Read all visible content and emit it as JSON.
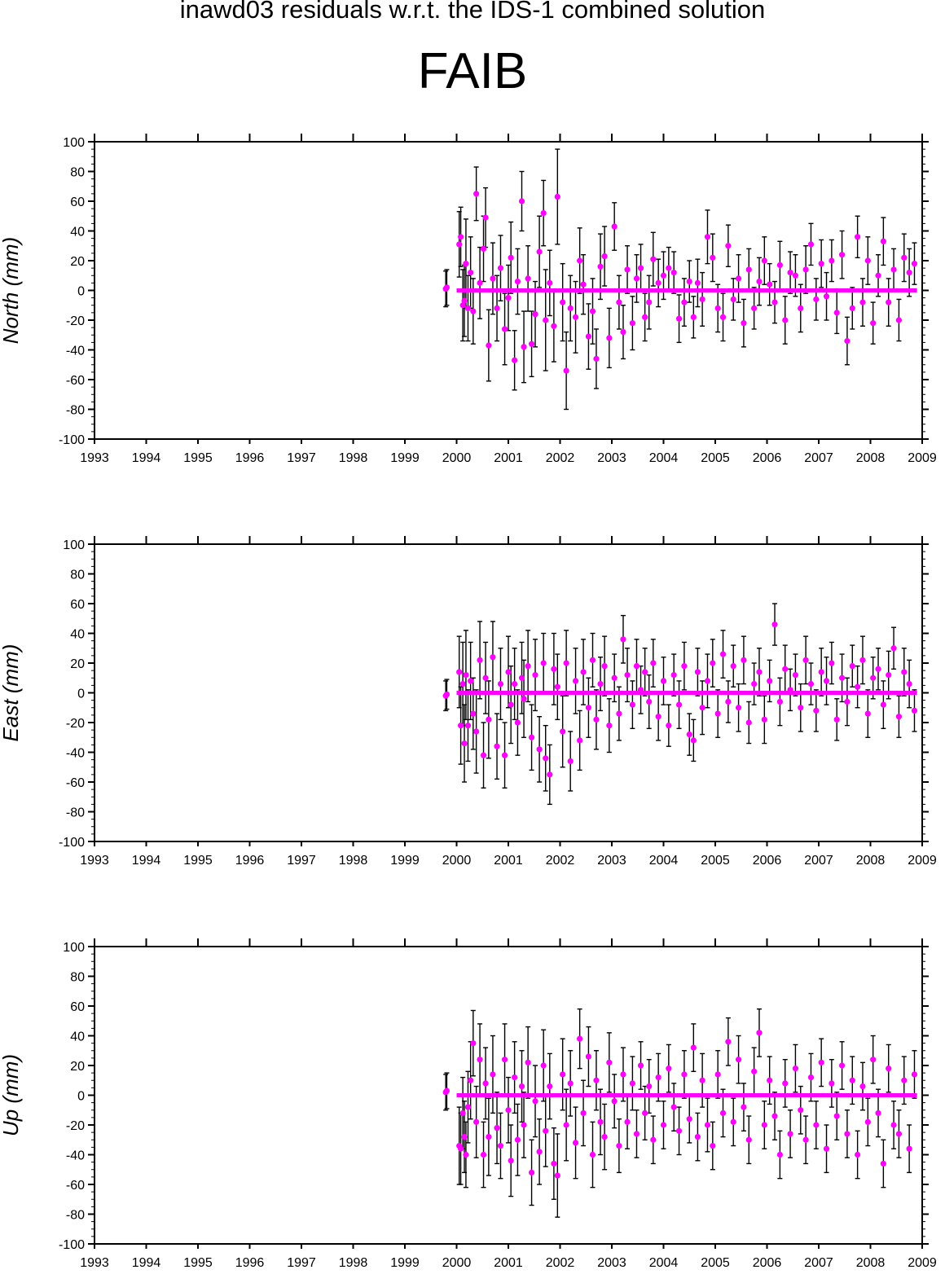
{
  "title": "inawd03 residuals w.r.t. the IDS-1 combined solution",
  "station": "FAIB",
  "colors": {
    "point": "#ff00ff",
    "errorbar": "#000000",
    "axis": "#000000"
  },
  "chart_data": [
    {
      "type": "scatter",
      "ylabel": "North (mm)",
      "xlim": [
        1993,
        2009
      ],
      "ylim": [
        -100,
        100
      ],
      "xticks": [
        1993,
        1994,
        1995,
        1996,
        1997,
        1998,
        1999,
        2000,
        2001,
        2002,
        2003,
        2004,
        2005,
        2006,
        2007,
        2008,
        2009
      ],
      "yticks": [
        -100,
        -80,
        -60,
        -40,
        -20,
        0,
        20,
        40,
        60,
        80,
        100
      ],
      "error_bars": true,
      "series": [
        {
          "x": [
            1999.79,
            1999.81,
            2000.05,
            2000.08,
            2000.12,
            2000.15,
            2000.18,
            2000.22,
            2000.27,
            2000.32,
            2000.38,
            2000.45,
            2000.52,
            2000.56,
            2000.62,
            2000.7,
            2000.78,
            2000.85,
            2000.93,
            2001.0,
            2001.05,
            2001.12,
            2001.18,
            2001.26,
            2001.3,
            2001.38,
            2001.45,
            2001.52,
            2001.6,
            2001.68,
            2001.72,
            2001.8,
            2001.88,
            2001.95,
            2002.05,
            2002.12,
            2002.2,
            2002.3,
            2002.38,
            2002.45,
            2002.55,
            2002.63,
            2002.7,
            2002.78,
            2002.86,
            2002.95,
            2003.05,
            2003.14,
            2003.22,
            2003.3,
            2003.4,
            2003.48,
            2003.56,
            2003.64,
            2003.72,
            2003.8,
            2003.9,
            2004.0,
            2004.1,
            2004.2,
            2004.3,
            2004.4,
            2004.5,
            2004.58,
            2004.66,
            2004.75,
            2004.85,
            2004.95,
            2005.05,
            2005.15,
            2005.25,
            2005.35,
            2005.45,
            2005.55,
            2005.65,
            2005.75,
            2005.85,
            2005.95,
            2006.05,
            2006.15,
            2006.25,
            2006.35,
            2006.45,
            2006.55,
            2006.65,
            2006.75,
            2006.85,
            2006.95,
            2007.05,
            2007.15,
            2007.25,
            2007.35,
            2007.45,
            2007.55,
            2007.65,
            2007.75,
            2007.85,
            2007.95,
            2008.05,
            2008.15,
            2008.25,
            2008.35,
            2008.45,
            2008.55,
            2008.65,
            2008.75,
            2008.85
          ],
          "y": [
            1,
            2,
            31,
            36,
            -10,
            -7,
            18,
            -12,
            12,
            -14,
            65,
            5,
            28,
            49,
            -37,
            8,
            -12,
            15,
            -26,
            -5,
            22,
            -47,
            6,
            60,
            -38,
            8,
            -36,
            -16,
            26,
            52,
            -20,
            5,
            -24,
            63,
            -8,
            -54,
            -12,
            -18,
            20,
            4,
            -31,
            -14,
            -46,
            16,
            23,
            -32,
            43,
            -8,
            -28,
            14,
            -22,
            8,
            15,
            -18,
            -8,
            21,
            5,
            10,
            15,
            12,
            -19,
            -8,
            6,
            -18,
            5,
            -6,
            36,
            22,
            -12,
            -18,
            30,
            -6,
            8,
            -22,
            14,
            -12,
            6,
            20,
            4,
            -8,
            17,
            -20,
            12,
            10,
            -12,
            14,
            31,
            -6,
            18,
            -4,
            20,
            -15,
            24,
            -34,
            -12,
            36,
            -8,
            20,
            -22,
            10,
            33,
            -8,
            14,
            -20,
            22,
            12,
            18
          ],
          "err": [
            12,
            12,
            22,
            20,
            24,
            24,
            30,
            22,
            24,
            22,
            18,
            24,
            22,
            20,
            24,
            24,
            22,
            22,
            24,
            22,
            24,
            20,
            22,
            20,
            24,
            22,
            22,
            22,
            24,
            22,
            34,
            22,
            24,
            32,
            26,
            26,
            22,
            24,
            22,
            20,
            22,
            22,
            20,
            22,
            20,
            20,
            16,
            18,
            18,
            16,
            18,
            16,
            16,
            16,
            18,
            18,
            16,
            16,
            14,
            14,
            16,
            16,
            14,
            14,
            16,
            18,
            18,
            16,
            16,
            16,
            14,
            14,
            16,
            16,
            14,
            14,
            16,
            16,
            14,
            14,
            16,
            16,
            14,
            14,
            16,
            16,
            14,
            14,
            16,
            16,
            14,
            14,
            16,
            16,
            14,
            14,
            16,
            16,
            14,
            14,
            16,
            16,
            14,
            14,
            16,
            16,
            14
          ]
        }
      ]
    },
    {
      "type": "scatter",
      "ylabel": "East (mm)",
      "xlim": [
        1993,
        2009
      ],
      "ylim": [
        -100,
        100
      ],
      "xticks": [
        1993,
        1994,
        1995,
        1996,
        1997,
        1998,
        1999,
        2000,
        2001,
        2002,
        2003,
        2004,
        2005,
        2006,
        2007,
        2008,
        2009
      ],
      "yticks": [
        -100,
        -80,
        -60,
        -40,
        -20,
        0,
        20,
        40,
        60,
        80,
        100
      ],
      "error_bars": true,
      "series": [
        {
          "x": [
            1999.79,
            1999.81,
            2000.05,
            2000.08,
            2000.12,
            2000.15,
            2000.18,
            2000.22,
            2000.27,
            2000.32,
            2000.38,
            2000.45,
            2000.52,
            2000.56,
            2000.62,
            2000.7,
            2000.78,
            2000.85,
            2000.93,
            2001.0,
            2001.05,
            2001.12,
            2001.18,
            2001.26,
            2001.3,
            2001.38,
            2001.45,
            2001.52,
            2001.6,
            2001.68,
            2001.72,
            2001.8,
            2001.88,
            2001.95,
            2002.05,
            2002.12,
            2002.2,
            2002.3,
            2002.38,
            2002.45,
            2002.55,
            2002.63,
            2002.7,
            2002.78,
            2002.86,
            2002.95,
            2003.05,
            2003.14,
            2003.22,
            2003.3,
            2003.4,
            2003.48,
            2003.56,
            2003.64,
            2003.72,
            2003.8,
            2003.9,
            2004.0,
            2004.1,
            2004.2,
            2004.3,
            2004.4,
            2004.5,
            2004.58,
            2004.66,
            2004.75,
            2004.85,
            2004.95,
            2005.05,
            2005.15,
            2005.25,
            2005.35,
            2005.45,
            2005.55,
            2005.65,
            2005.75,
            2005.85,
            2005.95,
            2006.05,
            2006.15,
            2006.25,
            2006.35,
            2006.45,
            2006.55,
            2006.65,
            2006.75,
            2006.85,
            2006.95,
            2007.05,
            2007.15,
            2007.25,
            2007.35,
            2007.45,
            2007.55,
            2007.65,
            2007.75,
            2007.85,
            2007.95,
            2008.05,
            2008.15,
            2008.25,
            2008.35,
            2008.45,
            2008.55,
            2008.65,
            2008.75,
            2008.85
          ],
          "y": [
            -2,
            -1,
            14,
            -22,
            6,
            -34,
            12,
            -22,
            8,
            -14,
            -26,
            22,
            -42,
            10,
            -18,
            24,
            -36,
            6,
            -42,
            14,
            -8,
            6,
            -20,
            10,
            -4,
            18,
            -30,
            12,
            -38,
            20,
            -44,
            -55,
            16,
            4,
            -26,
            20,
            -46,
            8,
            -32,
            14,
            -10,
            22,
            -18,
            6,
            18,
            -22,
            10,
            -14,
            36,
            12,
            -8,
            18,
            2,
            14,
            -6,
            20,
            -16,
            8,
            -22,
            12,
            -8,
            18,
            -28,
            -32,
            14,
            -10,
            8,
            20,
            -14,
            26,
            -6,
            18,
            -10,
            22,
            -20,
            6,
            14,
            -18,
            8,
            46,
            -6,
            16,
            2,
            12,
            -10,
            22,
            6,
            -12,
            14,
            8,
            20,
            -18,
            10,
            -6,
            18,
            4,
            22,
            -14,
            10,
            16,
            -8,
            12,
            30,
            -16,
            14,
            6,
            -12
          ],
          "err": [
            10,
            10,
            24,
            26,
            28,
            26,
            30,
            24,
            26,
            24,
            28,
            26,
            22,
            24,
            26,
            24,
            22,
            24,
            22,
            24,
            26,
            24,
            22,
            24,
            26,
            24,
            22,
            24,
            22,
            20,
            22,
            20,
            24,
            22,
            24,
            22,
            20,
            22,
            20,
            22,
            20,
            18,
            20,
            18,
            20,
            18,
            16,
            18,
            16,
            18,
            16,
            18,
            16,
            16,
            18,
            16,
            16,
            16,
            14,
            14,
            16,
            16,
            14,
            14,
            16,
            18,
            18,
            16,
            16,
            16,
            14,
            14,
            16,
            16,
            14,
            14,
            16,
            16,
            14,
            14,
            16,
            16,
            14,
            14,
            16,
            16,
            14,
            14,
            16,
            16,
            14,
            14,
            16,
            16,
            14,
            14,
            16,
            16,
            14,
            14,
            16,
            16,
            14,
            14,
            16,
            16,
            14
          ]
        }
      ]
    },
    {
      "type": "scatter",
      "ylabel": "Up (mm)",
      "xlim": [
        1993,
        2009
      ],
      "ylim": [
        -100,
        100
      ],
      "xticks": [
        1993,
        1994,
        1995,
        1996,
        1997,
        1998,
        1999,
        2000,
        2001,
        2002,
        2003,
        2004,
        2005,
        2006,
        2007,
        2008,
        2009
      ],
      "yticks": [
        -100,
        -80,
        -60,
        -40,
        -20,
        0,
        20,
        40,
        60,
        80,
        100
      ],
      "error_bars": true,
      "series": [
        {
          "x": [
            1999.79,
            1999.81,
            2000.05,
            2000.08,
            2000.12,
            2000.15,
            2000.18,
            2000.22,
            2000.27,
            2000.32,
            2000.38,
            2000.45,
            2000.52,
            2000.56,
            2000.62,
            2000.7,
            2000.78,
            2000.85,
            2000.93,
            2001.0,
            2001.05,
            2001.12,
            2001.18,
            2001.26,
            2001.3,
            2001.38,
            2001.45,
            2001.52,
            2001.6,
            2001.68,
            2001.72,
            2001.8,
            2001.88,
            2001.95,
            2002.05,
            2002.12,
            2002.2,
            2002.3,
            2002.38,
            2002.45,
            2002.55,
            2002.63,
            2002.7,
            2002.78,
            2002.86,
            2002.95,
            2003.05,
            2003.14,
            2003.22,
            2003.3,
            2003.4,
            2003.48,
            2003.56,
            2003.64,
            2003.72,
            2003.8,
            2003.9,
            2004.0,
            2004.1,
            2004.2,
            2004.3,
            2004.4,
            2004.5,
            2004.58,
            2004.66,
            2004.75,
            2004.85,
            2004.95,
            2005.05,
            2005.15,
            2005.25,
            2005.35,
            2005.45,
            2005.55,
            2005.65,
            2005.75,
            2005.85,
            2005.95,
            2006.05,
            2006.15,
            2006.25,
            2006.35,
            2006.45,
            2006.55,
            2006.65,
            2006.75,
            2006.85,
            2006.95,
            2007.05,
            2007.15,
            2007.25,
            2007.35,
            2007.45,
            2007.55,
            2007.65,
            2007.75,
            2007.85,
            2007.95,
            2008.05,
            2008.15,
            2008.25,
            2008.35,
            2008.45,
            2008.55,
            2008.65,
            2008.75,
            2008.85
          ],
          "y": [
            2,
            3,
            -34,
            -36,
            -12,
            -28,
            -40,
            -8,
            10,
            35,
            -18,
            24,
            -40,
            8,
            -28,
            14,
            -22,
            -34,
            24,
            -10,
            -44,
            12,
            -30,
            6,
            -20,
            22,
            -52,
            -4,
            -38,
            20,
            -24,
            6,
            -46,
            -54,
            14,
            -20,
            8,
            -32,
            38,
            -12,
            26,
            -40,
            10,
            -18,
            -28,
            22,
            -4,
            -34,
            14,
            -18,
            8,
            -26,
            20,
            -12,
            6,
            -30,
            12,
            -20,
            18,
            -8,
            -24,
            14,
            -16,
            32,
            -28,
            10,
            -20,
            -34,
            14,
            -12,
            36,
            -18,
            24,
            -8,
            -30,
            16,
            42,
            -20,
            10,
            -14,
            -40,
            8,
            -26,
            18,
            -10,
            -30,
            12,
            -20,
            22,
            -36,
            8,
            -14,
            20,
            -26,
            10,
            -40,
            6,
            -18,
            24,
            -12,
            -46,
            18,
            -20,
            -26,
            10,
            -36,
            14
          ],
          "err": [
            12,
            12,
            26,
            24,
            24,
            24,
            22,
            24,
            26,
            22,
            24,
            24,
            22,
            24,
            26,
            26,
            24,
            22,
            24,
            22,
            24,
            24,
            24,
            24,
            22,
            24,
            22,
            24,
            22,
            24,
            24,
            22,
            24,
            28,
            24,
            24,
            22,
            24,
            20,
            22,
            20,
            22,
            20,
            22,
            22,
            20,
            18,
            18,
            18,
            18,
            18,
            16,
            16,
            18,
            18,
            16,
            16,
            16,
            16,
            16,
            16,
            16,
            16,
            16,
            16,
            18,
            18,
            16,
            16,
            16,
            16,
            16,
            16,
            16,
            16,
            16,
            16,
            16,
            16,
            16,
            16,
            16,
            16,
            16,
            16,
            16,
            16,
            16,
            16,
            16,
            16,
            16,
            16,
            16,
            16,
            16,
            16,
            16,
            16,
            16,
            16,
            16,
            16,
            16,
            16,
            16,
            16
          ]
        }
      ]
    }
  ]
}
